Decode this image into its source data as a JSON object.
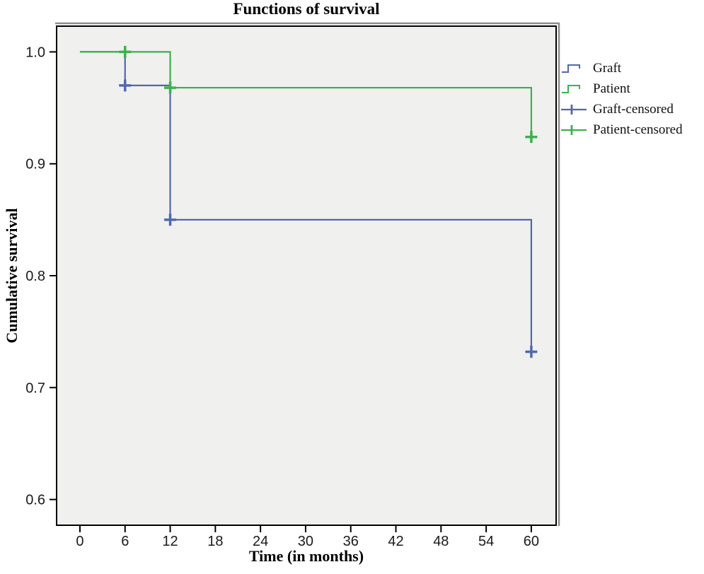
{
  "chart": {
    "title": "Functions of survival",
    "xlabel": "Time (in months)",
    "ylabel": "Cumulative survival"
  },
  "chart_data": {
    "type": "line",
    "subtype": "kaplan-meier-step",
    "title": "Functions of survival",
    "xlabel": "Time (in months)",
    "ylabel": "Cumulative survival",
    "x_ticks": [
      0,
      6,
      12,
      18,
      24,
      30,
      36,
      42,
      48,
      54,
      60
    ],
    "y_ticks": [
      0.6,
      0.7,
      0.8,
      0.9,
      1.0
    ],
    "xlim": [
      -3.1,
      63.3
    ],
    "ylim": [
      0.577,
      1.023
    ],
    "grid": false,
    "legend_position": "right",
    "plot_bg_color": "#f0f0ee",
    "axis_color": "#000000",
    "tick_label_color": "#1a1a1a",
    "series": [
      {
        "name": "Graft",
        "color": "#5068ae",
        "steps": [
          [
            0,
            1.0
          ],
          [
            6,
            1.0
          ],
          [
            6,
            0.97
          ],
          [
            12,
            0.97
          ],
          [
            12,
            0.85
          ],
          [
            60,
            0.85
          ],
          [
            60,
            0.732
          ]
        ],
        "censored": [
          [
            6,
            0.97
          ],
          [
            12,
            0.85
          ],
          [
            60,
            0.732
          ]
        ]
      },
      {
        "name": "Patient",
        "color": "#3cb14c",
        "steps": [
          [
            0,
            1.0
          ],
          [
            12,
            1.0
          ],
          [
            12,
            0.968
          ],
          [
            60,
            0.968
          ],
          [
            60,
            0.924
          ]
        ],
        "censored": [
          [
            6,
            1.0
          ],
          [
            12,
            0.968
          ],
          [
            60,
            0.924
          ]
        ]
      }
    ],
    "legend_entries": [
      {
        "label": "Graft",
        "color": "#5068ae",
        "symbol": "step"
      },
      {
        "label": "Patient",
        "color": "#3cb14c",
        "symbol": "step"
      },
      {
        "label": "Graft-censored",
        "color": "#5068ae",
        "symbol": "plus"
      },
      {
        "label": "Patient-censored",
        "color": "#3cb14c",
        "symbol": "plus"
      }
    ]
  }
}
